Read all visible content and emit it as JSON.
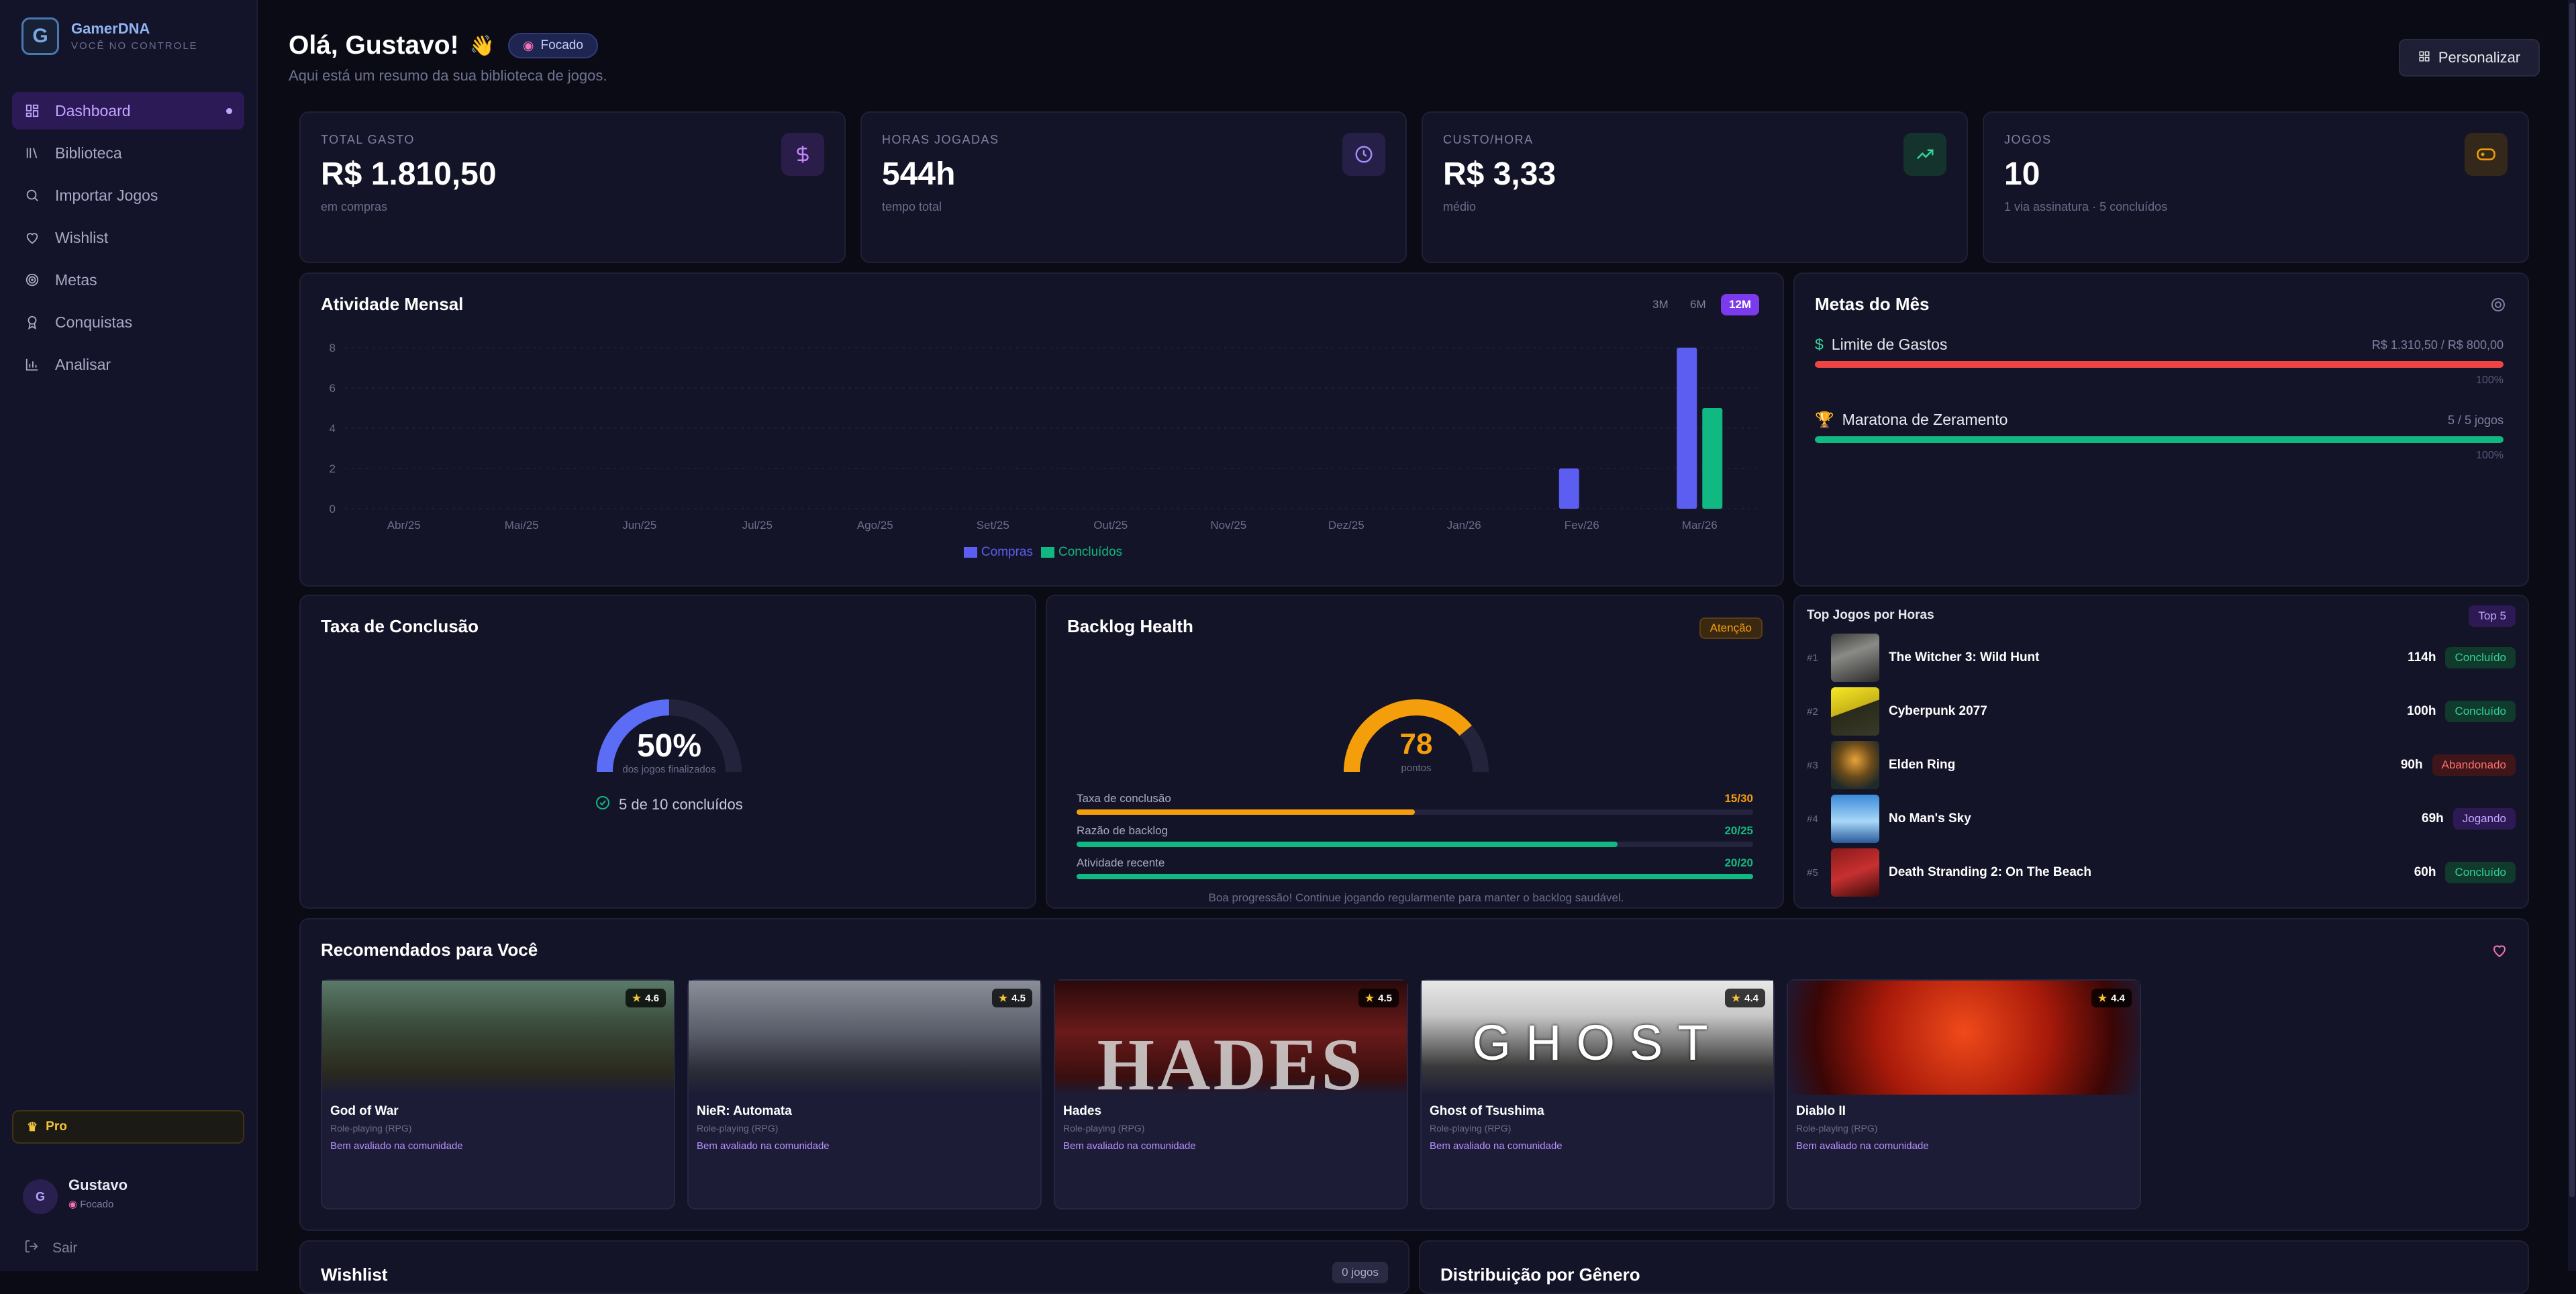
{
  "app": {
    "name": "GamerDNA",
    "tagline": "VOCÊ NO CONTROLE",
    "logo_letter": "G"
  },
  "nav": [
    {
      "label": "Dashboard",
      "icon": "dashboard-icon",
      "active": true
    },
    {
      "label": "Biblioteca",
      "icon": "library-icon"
    },
    {
      "label": "Importar Jogos",
      "icon": "search-icon"
    },
    {
      "label": "Wishlist",
      "icon": "heart-icon"
    },
    {
      "label": "Metas",
      "icon": "target-icon"
    },
    {
      "label": "Conquistas",
      "icon": "award-icon"
    },
    {
      "label": "Analisar",
      "icon": "bar-chart-icon"
    }
  ],
  "plan": {
    "label": "Pro"
  },
  "user": {
    "initial": "G",
    "name": "Gustavo",
    "mode": "Focado"
  },
  "logout_label": "Sair",
  "header": {
    "greeting": "Olá, Gustavo!",
    "emoji": "👋",
    "mode_chip": "Focado",
    "subtitle": "Aqui está um resumo da sua biblioteca de jogos.",
    "customize_button": "Personalizar"
  },
  "stats": [
    {
      "label": "TOTAL GASTO",
      "value": "R$ 1.810,50",
      "sub": "em compras",
      "icon": "dollar-icon",
      "color": "#c084fc"
    },
    {
      "label": "HORAS JOGADAS",
      "value": "544h",
      "sub": "tempo total",
      "icon": "clock-icon",
      "color": "#a78bfa"
    },
    {
      "label": "CUSTO/HORA",
      "value": "R$ 3,33",
      "sub": "médio",
      "icon": "trending-up-icon",
      "color": "#34d399"
    },
    {
      "label": "JOGOS",
      "value": "10",
      "sub": "1 via assinatura · 5 concluídos",
      "icon": "gamepad-icon",
      "color": "#f59e0b"
    }
  ],
  "activity": {
    "title": "Atividade Mensal",
    "ranges": [
      "3M",
      "6M",
      "12M"
    ],
    "active_range": "12M"
  },
  "chart_data": {
    "type": "bar",
    "title": "Atividade Mensal",
    "categories": [
      "Abr/25",
      "Mai/25",
      "Jun/25",
      "Jul/25",
      "Ago/25",
      "Set/25",
      "Out/25",
      "Nov/25",
      "Dez/25",
      "Jan/26",
      "Fev/26",
      "Mar/26"
    ],
    "series": [
      {
        "name": "Compras",
        "color": "#5b5ef0",
        "values": [
          0,
          0,
          0,
          0,
          0,
          0,
          0,
          0,
          0,
          0,
          2,
          8
        ]
      },
      {
        "name": "Concluídos",
        "color": "#10b981",
        "values": [
          0,
          0,
          0,
          0,
          0,
          0,
          0,
          0,
          0,
          0,
          0,
          5
        ]
      }
    ],
    "yticks": [
      0,
      2,
      4,
      6,
      8
    ],
    "ylim": [
      0,
      8
    ],
    "grid": true,
    "legend": "bottom"
  },
  "goals": {
    "title": "Metas do Mês",
    "items": [
      {
        "name": "Limite de Gastos",
        "icon": "dollar-icon",
        "value": "R$ 1.310,50 / R$ 800,00",
        "percent_label": "100%",
        "progress": 1.0,
        "color": "#ef4444",
        "icon_color": "#34d399"
      },
      {
        "name": "Maratona de Zeramento",
        "icon": "trophy-icon",
        "value": "5 / 5 jogos",
        "percent_label": "100%",
        "progress": 1.0,
        "color": "#10b981",
        "icon_color": "#f2c33b"
      }
    ]
  },
  "completion": {
    "title": "Taxa de Conclusão",
    "percent": "50%",
    "progress": 0.5,
    "caption": "dos jogos finalizados",
    "summary": "5 de 10 concluídos"
  },
  "backlog": {
    "title": "Backlog Health",
    "badge": "Atenção",
    "score": "78",
    "score_value": 78,
    "score_caption": "pontos",
    "metrics": [
      {
        "label": "Taxa de conclusão",
        "value": "15/30",
        "progress": 0.5,
        "color": "#f59e0b"
      },
      {
        "label": "Razão de backlog",
        "value": "20/25",
        "progress": 0.8,
        "color": "#10b981"
      },
      {
        "label": "Atividade recente",
        "value": "20/20",
        "progress": 1.0,
        "color": "#10b981"
      }
    ],
    "footer": "Boa progressão! Continue jogando regularmente para manter o backlog saudável."
  },
  "top_games": {
    "title": "Top Jogos por Horas",
    "badge": "Top 5",
    "items": [
      {
        "rank": "#1",
        "name": "The Witcher 3: Wild Hunt",
        "hours": "114h",
        "status": "Concluído",
        "status_type": "done"
      },
      {
        "rank": "#2",
        "name": "Cyberpunk 2077",
        "hours": "100h",
        "status": "Concluído",
        "status_type": "done"
      },
      {
        "rank": "#3",
        "name": "Elden Ring",
        "hours": "90h",
        "status": "Abandonado",
        "status_type": "abandon"
      },
      {
        "rank": "#4",
        "name": "No Man's Sky",
        "hours": "69h",
        "status": "Jogando",
        "status_type": "playing"
      },
      {
        "rank": "#5",
        "name": "Death Stranding 2: On The Beach",
        "hours": "60h",
        "status": "Concluído",
        "status_type": "done"
      }
    ]
  },
  "recommendations": {
    "title": "Recomendados para Você",
    "items": [
      {
        "title": "God of War",
        "genre": "Role-playing (RPG)",
        "rating": "4.6",
        "note": "Bem avaliado na comunidade"
      },
      {
        "title": "NieR: Automata",
        "genre": "Role-playing (RPG)",
        "rating": "4.5",
        "note": "Bem avaliado na comunidade"
      },
      {
        "title": "Hades",
        "genre": "Role-playing (RPG)",
        "rating": "4.5",
        "note": "Bem avaliado na comunidade",
        "art_text": "HADES"
      },
      {
        "title": "Ghost of Tsushima",
        "genre": "Role-playing (RPG)",
        "rating": "4.4",
        "note": "Bem avaliado na comunidade",
        "art_text": "GHOST"
      },
      {
        "title": "Diablo II",
        "genre": "Role-playing (RPG)",
        "rating": "4.4",
        "note": "Bem avaliado na comunidade"
      }
    ]
  },
  "bottom_sections": {
    "wishlist_title": "Wishlist",
    "wishlist_badge": "0 jogos",
    "genre_title": "Distribuição por Gênero"
  }
}
